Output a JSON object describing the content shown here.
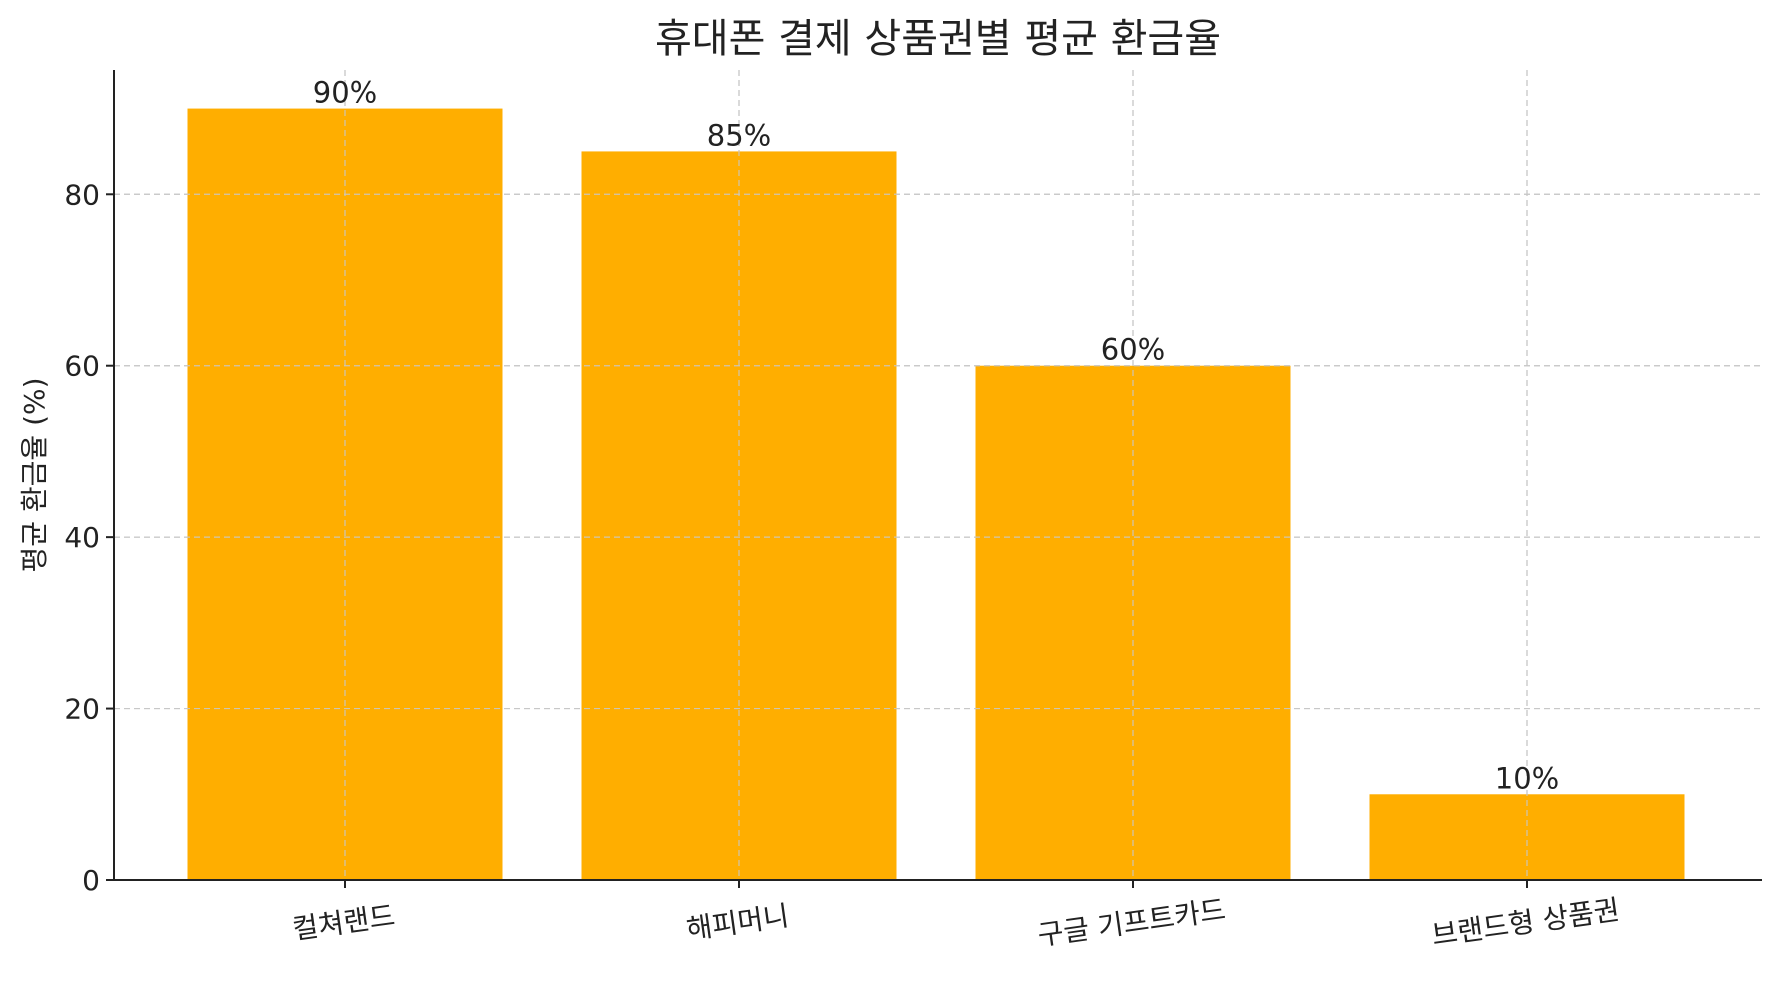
{
  "chart_data": {
    "type": "bar",
    "title": "휴대폰 결제 상품권별 평균 환금율",
    "xlabel": "",
    "ylabel": "평균 환금율 (%)",
    "categories": [
      "컬쳐랜드",
      "해피머니",
      "구글 기프트카드",
      "브랜드형 상품권"
    ],
    "values": [
      90,
      85,
      60,
      10
    ],
    "value_labels": [
      "90%",
      "85%",
      "60%",
      "10%"
    ],
    "ylim": [
      0,
      94.5
    ],
    "yticks": [
      0,
      20,
      40,
      60,
      80
    ],
    "ytick_labels": [
      "0",
      "20",
      "40",
      "60",
      "80"
    ],
    "grid": true,
    "bar_color": "#FFAE00",
    "grid_color": "#C8C8C8",
    "axis_color": "#222222"
  }
}
